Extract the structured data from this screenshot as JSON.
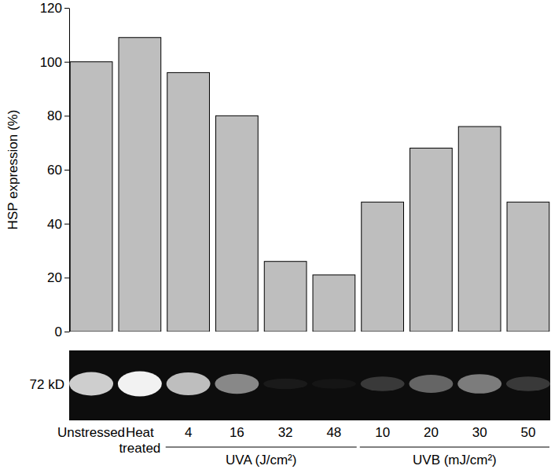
{
  "chart_data": {
    "type": "bar",
    "y_label": "HSP expression (%)",
    "categories": [
      "Unstressed",
      "Heat treated",
      "4",
      "16",
      "32",
      "48",
      "10",
      "20",
      "30",
      "50"
    ],
    "values": [
      100,
      109,
      96,
      80,
      26,
      21,
      48,
      68,
      76,
      48
    ],
    "color": "#bebebe",
    "ylim": [
      0,
      120
    ],
    "yticks": [
      0,
      20,
      40,
      60,
      80,
      100,
      120
    ],
    "grid": false,
    "blot_label": "72 kD",
    "groups": [
      {
        "label": "UVA (J/cm²)",
        "categories": [
          "4",
          "16",
          "32",
          "48"
        ]
      },
      {
        "label": "UVB (mJ/cm²)",
        "categories": [
          "10",
          "20",
          "30",
          "50"
        ]
      }
    ]
  }
}
